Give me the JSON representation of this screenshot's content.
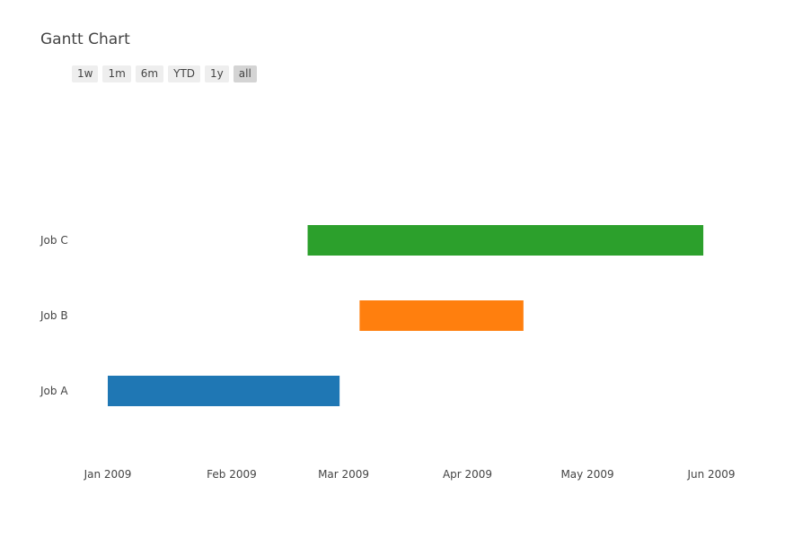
{
  "chart_data": {
    "type": "gantt",
    "title": "Gantt Chart",
    "range_buttons": [
      "1w",
      "1m",
      "6m",
      "YTD",
      "1y",
      "all"
    ],
    "active_range": "all",
    "tasks": [
      {
        "name": "Job A",
        "start": "2009-01-01",
        "finish": "2009-02-28",
        "color": "#1f77b4"
      },
      {
        "name": "Job B",
        "start": "2009-03-05",
        "finish": "2009-04-15",
        "color": "#ff7f0e"
      },
      {
        "name": "Job C",
        "start": "2009-02-20",
        "finish": "2009-05-30",
        "color": "#2ca02c"
      }
    ],
    "x_ticks": [
      "Jan 2009",
      "Feb 2009",
      "Mar 2009",
      "Apr 2009",
      "May 2009",
      "Jun 2009"
    ],
    "x_tick_dates": [
      "2009-01-01",
      "2009-02-01",
      "2009-03-01",
      "2009-04-01",
      "2009-05-01",
      "2009-06-01"
    ],
    "xlim": [
      "2009-01-01",
      "2009-06-01"
    ],
    "y_categories": [
      "Job A",
      "Job B",
      "Job C"
    ]
  }
}
